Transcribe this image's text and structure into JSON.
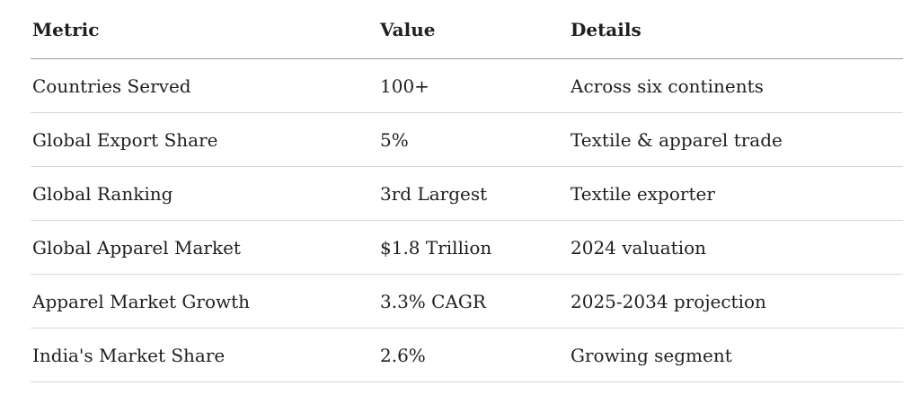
{
  "chart_data": {
    "type": "table",
    "columns": [
      "Metric",
      "Value",
      "Details"
    ],
    "rows": [
      [
        "Countries Served",
        "100+",
        "Across six continents"
      ],
      [
        "Global Export Share",
        "5%",
        "Textile & apparel trade"
      ],
      [
        "Global Ranking",
        "3rd Largest",
        "Textile exporter"
      ],
      [
        "Global Apparel Market",
        "$1.8 Trillion",
        "2024 valuation"
      ],
      [
        "Apparel Market Growth",
        "3.3% CAGR",
        "2025-2034 projection"
      ],
      [
        "India's Market Share",
        "2.6%",
        "Growing segment"
      ]
    ]
  },
  "colors": {
    "text": "#1f1f1f",
    "header_divider": "#9a9a9a",
    "row_divider": "#d7d7d7",
    "background": "#ffffff"
  }
}
